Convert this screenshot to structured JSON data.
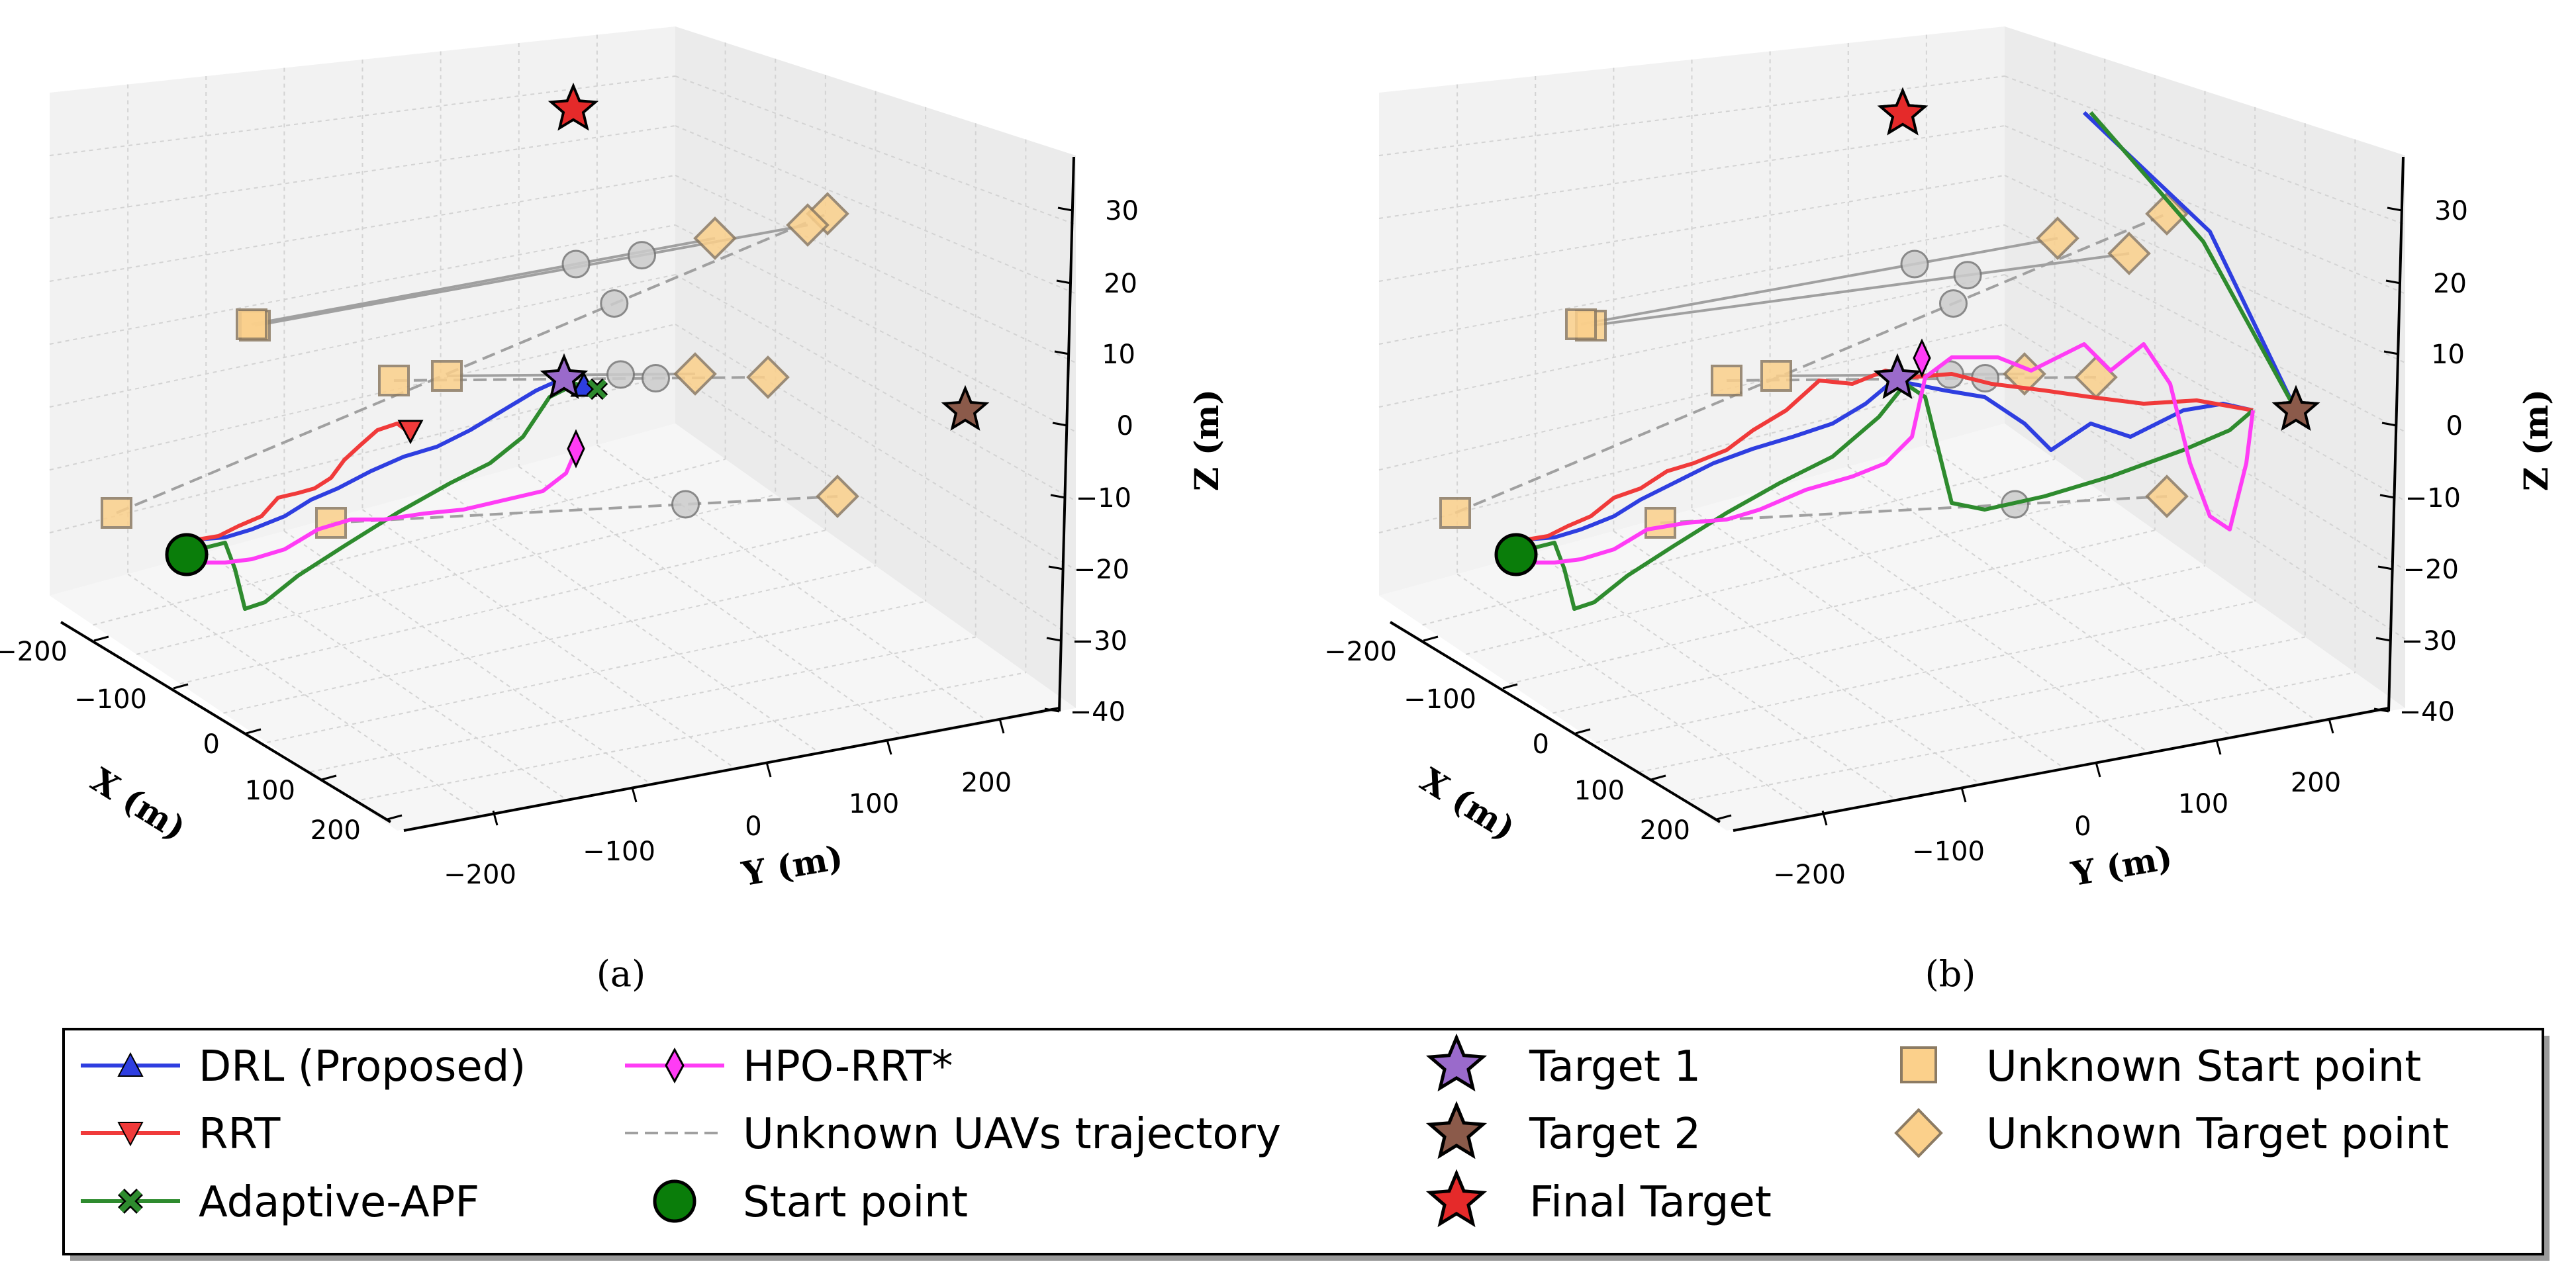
{
  "chart_data": [
    {
      "panel": "(a)",
      "type": "line",
      "projection": "3d",
      "xlabel": "X (m)",
      "ylabel": "Y (m)",
      "zlabel": "Z (m)",
      "x_ticks": [
        "−200",
        "−100",
        "0",
        "100",
        "200"
      ],
      "y_ticks": [
        "−200",
        "−100",
        "0",
        "100",
        "200"
      ],
      "z_ticks": [
        "30",
        "20",
        "10",
        "0",
        "−10",
        "−20",
        "−30",
        "−40"
      ],
      "xlim": [
        -250,
        250
      ],
      "ylim": [
        -250,
        250
      ],
      "zlim": [
        -40,
        35
      ],
      "grid": true,
      "series": [
        {
          "name": "DRL (Proposed)",
          "x": [
            -240,
            -150,
            -50,
            50,
            120
          ],
          "y": [
            -230,
            -150,
            -60,
            10,
            30
          ],
          "z": [
            -20,
            -14,
            -6,
            2,
            6
          ]
        },
        {
          "name": "RRT",
          "x": [
            -240,
            -160,
            -90,
            -40
          ],
          "y": [
            -230,
            -160,
            -100,
            -60
          ],
          "z": [
            -20,
            -12,
            -5,
            -2
          ]
        },
        {
          "name": "Adaptive-APF",
          "x": [
            -240,
            -200,
            -100,
            0,
            120
          ],
          "y": [
            -230,
            -170,
            -60,
            20,
            60
          ],
          "z": [
            -20,
            -35,
            -18,
            -2,
            6
          ]
        },
        {
          "name": "HPO-RRT*",
          "x": [
            -240,
            -150,
            -20,
            80,
            130
          ],
          "y": [
            -230,
            -160,
            -40,
            50,
            80
          ],
          "z": [
            -20,
            -16,
            -10,
            -6,
            -2
          ]
        }
      ],
      "markers": {
        "start_point": {
          "label": "Start point",
          "x": -240,
          "y": -230,
          "z": -20
        },
        "target_1": {
          "label": "Target 1",
          "x": 0,
          "y": 0,
          "z": 5
        },
        "target_2": {
          "label": "Target 2",
          "x": 200,
          "y": 200,
          "z": 5
        },
        "final_target": {
          "label": "Final Target",
          "x": -150,
          "y": -50,
          "z": 30
        }
      }
    },
    {
      "panel": "(b)",
      "type": "line",
      "projection": "3d",
      "xlabel": "X (m)",
      "ylabel": "Y (m)",
      "zlabel": "Z (m)",
      "x_ticks": [
        "−200",
        "−100",
        "0",
        "100",
        "200"
      ],
      "y_ticks": [
        "−200",
        "−100",
        "0",
        "100",
        "200"
      ],
      "z_ticks": [
        "30",
        "20",
        "10",
        "0",
        "−10",
        "−20",
        "−30",
        "−40"
      ],
      "xlim": [
        -250,
        250
      ],
      "ylim": [
        -250,
        250
      ],
      "zlim": [
        -40,
        35
      ],
      "grid": true,
      "series": [
        {
          "name": "DRL (Proposed)",
          "x": [
            -240,
            -150,
            -50,
            0,
            100,
            200
          ],
          "y": [
            -230,
            -150,
            -60,
            0,
            100,
            200
          ],
          "z": [
            -20,
            -14,
            -6,
            5,
            0,
            5
          ]
        },
        {
          "name": "RRT",
          "x": [
            -240,
            -160,
            -60,
            0,
            120,
            200
          ],
          "y": [
            -230,
            -160,
            -60,
            0,
            120,
            200
          ],
          "z": [
            -20,
            -12,
            -4,
            5,
            4,
            5
          ]
        },
        {
          "name": "Adaptive-APF",
          "x": [
            -240,
            -200,
            -100,
            0,
            120,
            200
          ],
          "y": [
            -230,
            -170,
            -60,
            0,
            100,
            200
          ],
          "z": [
            -20,
            -35,
            -18,
            5,
            -8,
            5
          ]
        },
        {
          "name": "HPO-RRT*",
          "x": [
            -240,
            -150,
            -20,
            20,
            150,
            200
          ],
          "y": [
            -230,
            -160,
            -40,
            10,
            150,
            200
          ],
          "z": [
            -20,
            -16,
            -10,
            8,
            -12,
            5
          ]
        }
      ],
      "markers": {
        "start_point": {
          "label": "Start point",
          "x": -240,
          "y": -230,
          "z": -20
        },
        "target_1": {
          "label": "Target 1",
          "x": 0,
          "y": 0,
          "z": 5
        },
        "target_2": {
          "label": "Target 2",
          "x": 200,
          "y": 200,
          "z": 5
        },
        "final_target": {
          "label": "Final Target",
          "x": -150,
          "y": -50,
          "z": 30
        }
      }
    }
  ],
  "legend": {
    "placement": "bottom",
    "entries": [
      {
        "label": "DRL (Proposed)",
        "color": "#2e3ee0",
        "marker": "triangle-up"
      },
      {
        "label": "RRT",
        "color": "#f03a3a",
        "marker": "triangle-down"
      },
      {
        "label": "Adaptive-APF",
        "color": "#2e8b2e",
        "marker": "x-cross"
      },
      {
        "label": "HPO-RRT*",
        "color": "#ff3cf5",
        "marker": "thin-diamond"
      },
      {
        "label": "Unknown UAVs trajectory",
        "color": "#a0a0a0",
        "marker": "dashed-line"
      },
      {
        "label": "Start point",
        "color": "#0a7d0a",
        "marker": "circle"
      },
      {
        "label": "Target 1",
        "color": "#9a6acb",
        "marker": "star"
      },
      {
        "label": "Target 2",
        "color": "#8b5a4a",
        "marker": "star"
      },
      {
        "label": "Final Target",
        "color": "#e52a2a",
        "marker": "star"
      },
      {
        "label": "Unknown Start point",
        "color": "#fbd08b",
        "marker": "square"
      },
      {
        "label": "Unknown Target point",
        "color": "#fbd08b",
        "marker": "diamond"
      }
    ]
  },
  "panels": {
    "a_label": "(a)",
    "b_label": "(b)"
  },
  "colors": {
    "drl": "#2e3ee0",
    "rrt": "#f03a3a",
    "apf": "#2e8b2e",
    "hpo": "#ff3cf5",
    "unknown": "#a0a0a0",
    "start": "#0a7d0a",
    "target1": "#9a6acb",
    "target2": "#8b5a4a",
    "final": "#e52a2a",
    "uk_marker": "#fbd08b"
  }
}
